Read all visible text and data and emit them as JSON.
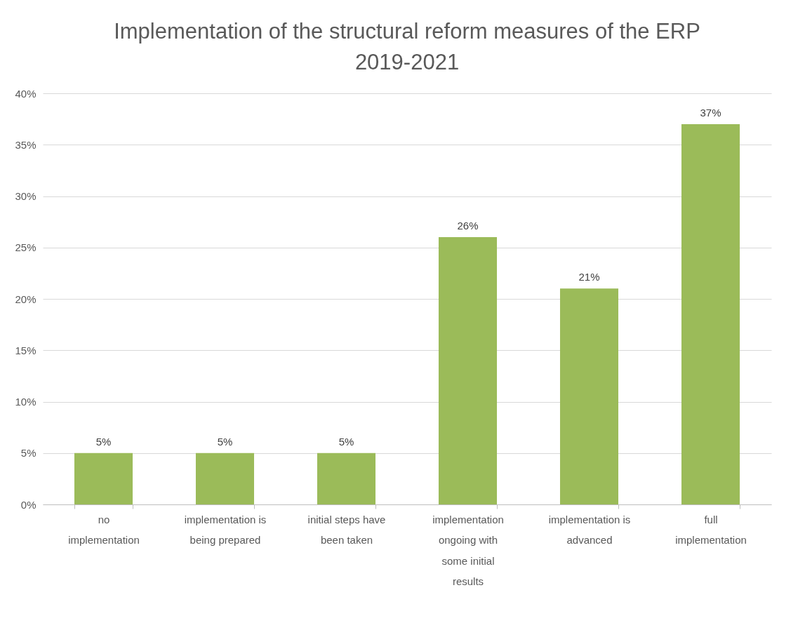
{
  "chart_data": {
    "type": "bar",
    "title": "Implementation of the structural reform measures of the ERP 2019-2021",
    "categories": [
      "no implementation",
      "implementation is being prepared",
      "initial steps have been taken",
      "implementation ongoing with some initial results",
      "implementation is advanced",
      "full implementation"
    ],
    "values": [
      5,
      5,
      5,
      26,
      21,
      37
    ],
    "value_labels": [
      "5%",
      "5%",
      "5%",
      "26%",
      "21%",
      "37%"
    ],
    "color": "#9bbb59",
    "ylim": [
      0,
      40
    ],
    "yticks": [
      {
        "value": 0,
        "label": "0%"
      },
      {
        "value": 5,
        "label": "5%"
      },
      {
        "value": 10,
        "label": "10%"
      },
      {
        "value": 15,
        "label": "15%"
      },
      {
        "value": 20,
        "label": "20%"
      },
      {
        "value": 25,
        "label": "25%"
      },
      {
        "value": 30,
        "label": "30%"
      },
      {
        "value": 35,
        "label": "35%"
      },
      {
        "value": 40,
        "label": "40%"
      }
    ],
    "grid": "y"
  }
}
